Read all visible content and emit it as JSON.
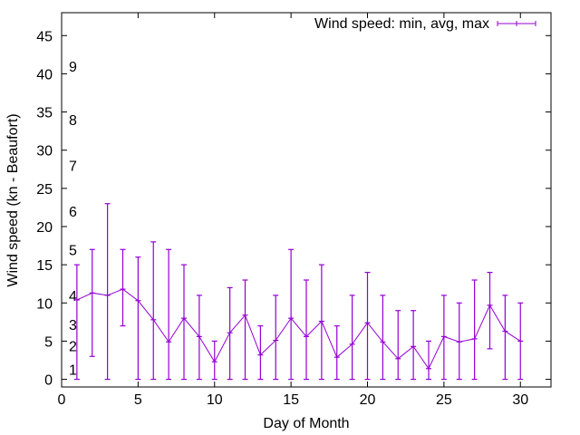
{
  "chart_data": {
    "type": "line",
    "style": "yerrorlines",
    "title": "",
    "xlabel": "Day of Month",
    "ylabel": "Wind speed (kn - Beaufort)",
    "xlim": [
      0,
      32
    ],
    "ylim": [
      -1,
      48
    ],
    "xticks": [
      0,
      5,
      10,
      15,
      20,
      25,
      30
    ],
    "yticks": [
      0,
      5,
      10,
      15,
      20,
      25,
      30,
      35,
      40,
      45
    ],
    "grid": false,
    "legend": {
      "label": "Wind speed: min, avg, max",
      "placement": "top-right"
    },
    "color": "#9400d3",
    "series": [
      {
        "name": "Wind speed: min, avg, max",
        "x": [
          1,
          2,
          3,
          4,
          5,
          6,
          7,
          8,
          9,
          10,
          11,
          12,
          13,
          14,
          15,
          16,
          17,
          18,
          19,
          20,
          21,
          22,
          23,
          24,
          25,
          26,
          27,
          28,
          29,
          30
        ],
        "avg": [
          10.4,
          11.3,
          11.0,
          11.8,
          10.3,
          7.8,
          4.9,
          8.0,
          5.6,
          2.3,
          6.1,
          8.4,
          3.2,
          5.1,
          8.0,
          5.6,
          7.6,
          2.9,
          4.6,
          7.4,
          4.9,
          2.7,
          4.3,
          1.4,
          5.6,
          4.9,
          5.3,
          9.7,
          6.3,
          5.0
        ],
        "min": [
          0,
          3,
          0,
          7,
          0,
          0,
          0,
          0,
          0,
          0,
          0,
          0,
          0,
          0,
          0,
          0,
          0,
          0,
          0,
          0,
          0,
          0,
          0,
          0,
          0,
          0,
          0,
          4,
          0,
          0
        ],
        "max": [
          15,
          17,
          23,
          17,
          16,
          18,
          17,
          15,
          11,
          5,
          12,
          13,
          7,
          11,
          17,
          13,
          15,
          7,
          11,
          14,
          11,
          9,
          9,
          5,
          11,
          10,
          13,
          14,
          11,
          10
        ]
      }
    ],
    "annotations": [
      {
        "text": "1",
        "y": 1.3
      },
      {
        "text": "2",
        "y": 4.4
      },
      {
        "text": "3",
        "y": 7.2
      },
      {
        "text": "4",
        "y": 11
      },
      {
        "text": "5",
        "y": 17
      },
      {
        "text": "6",
        "y": 22
      },
      {
        "text": "7",
        "y": 28
      },
      {
        "text": "8",
        "y": 34
      },
      {
        "text": "9",
        "y": 41
      }
    ]
  }
}
